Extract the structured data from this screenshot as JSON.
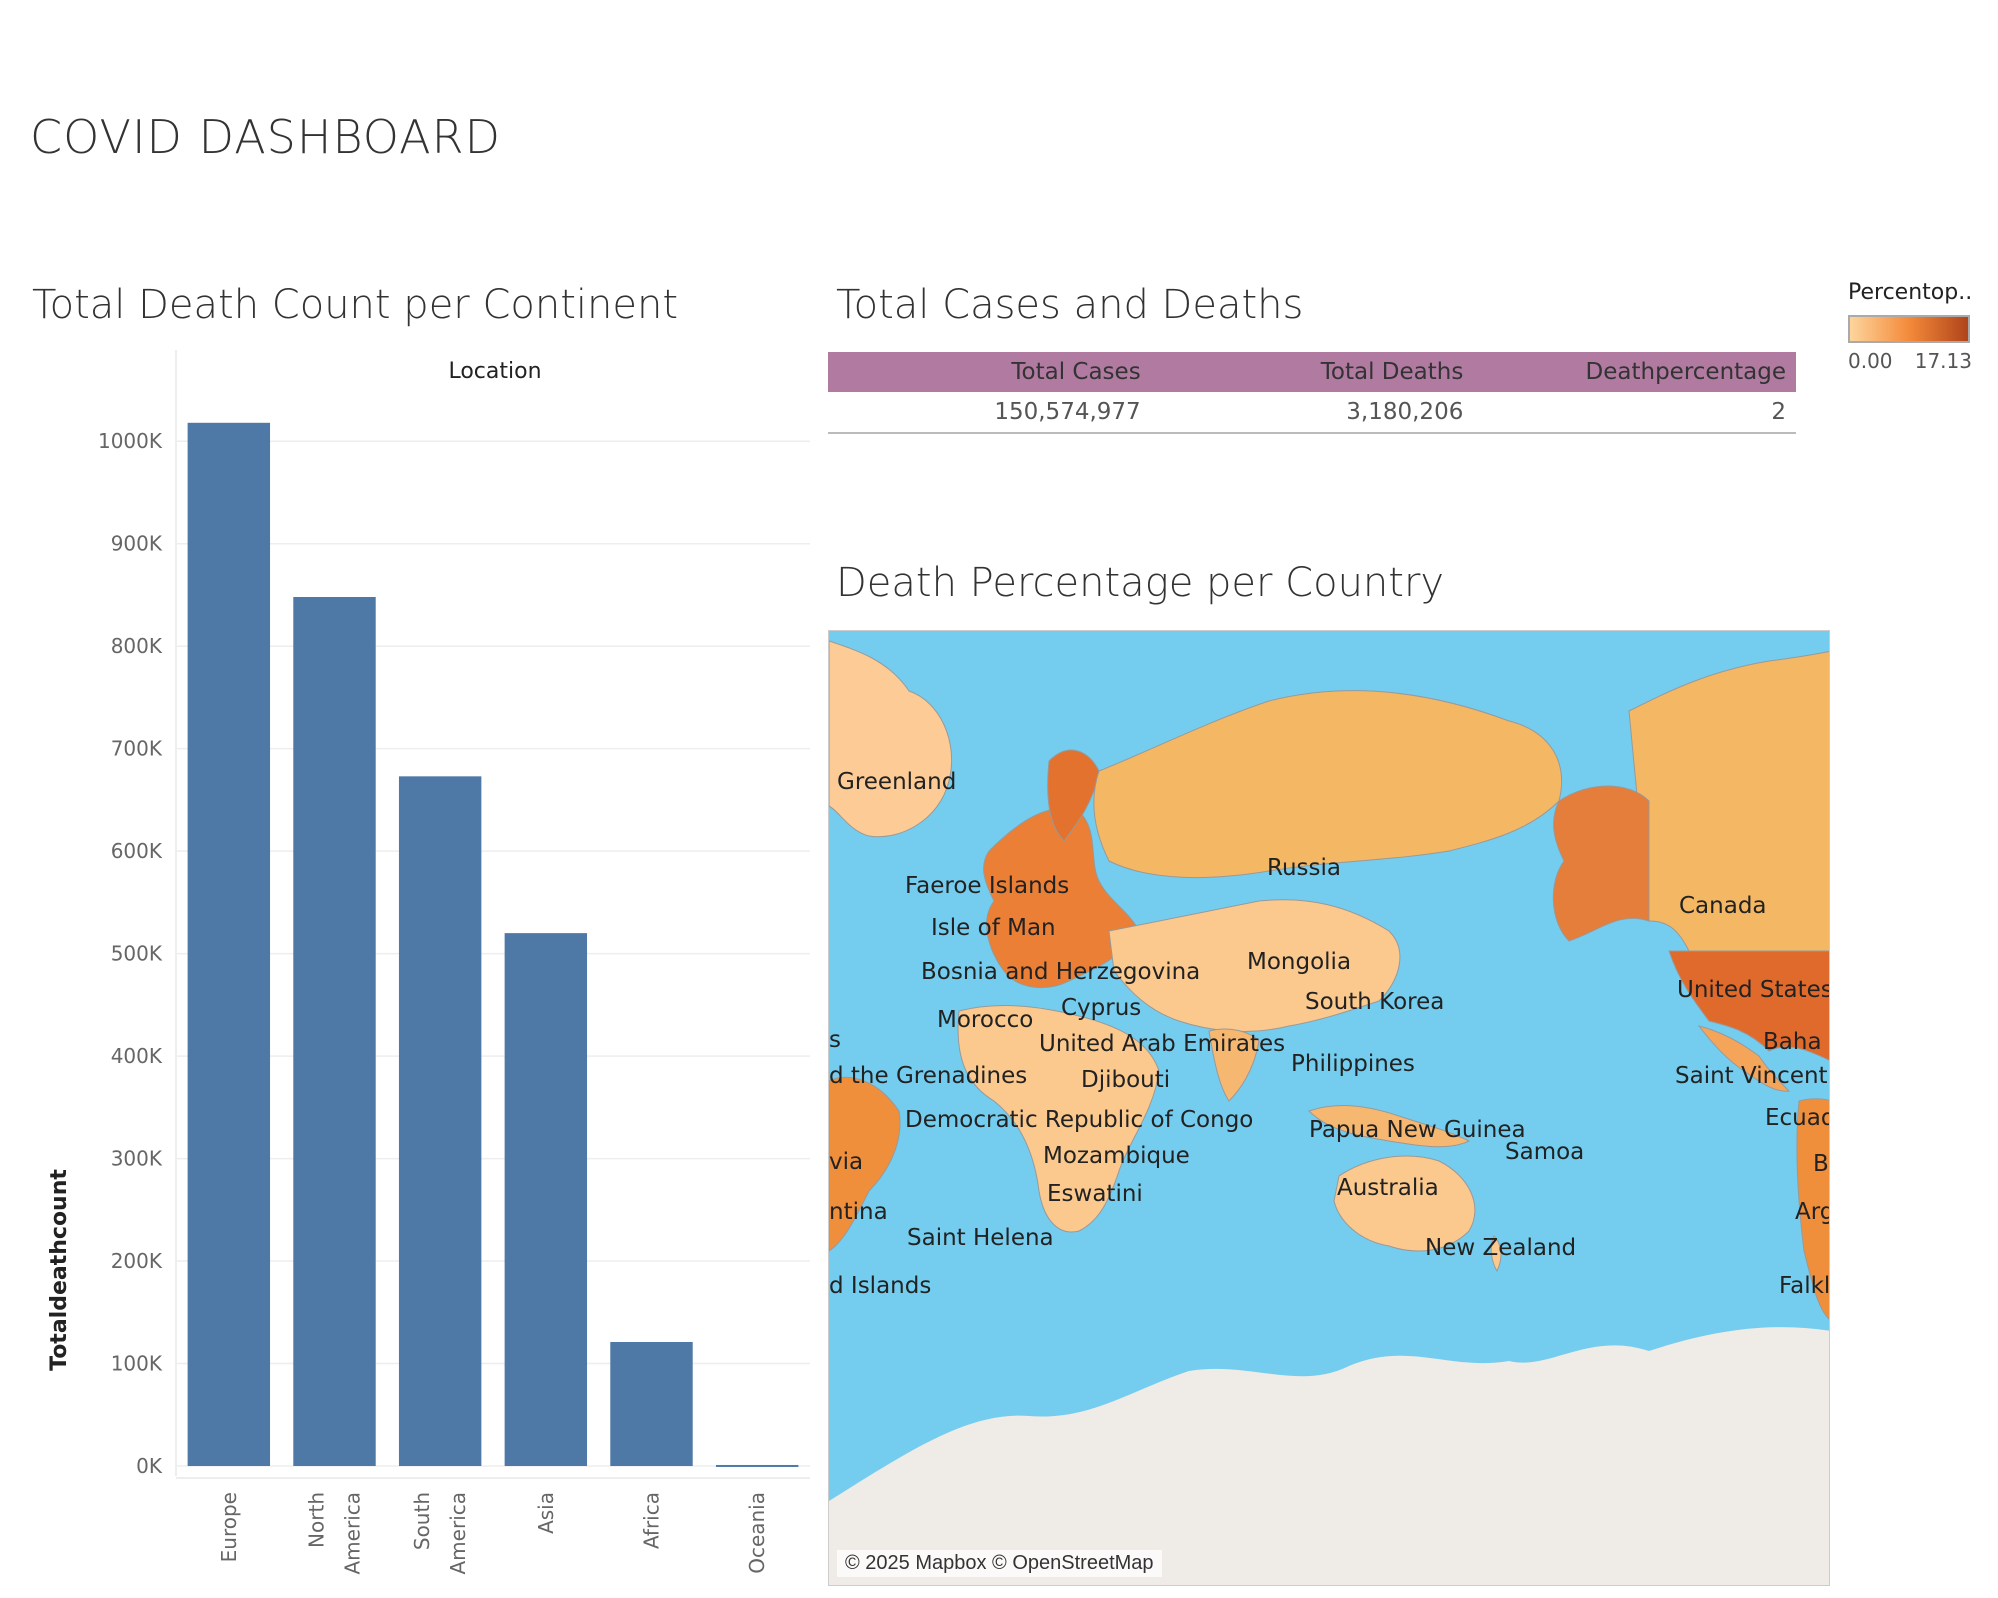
{
  "dashboard_title": "COVID DASHBOARD",
  "bar_section": {
    "title": "Total Death Count per Continent",
    "column_header": "Location",
    "y_axis_title": "Totaldeathcount"
  },
  "table_section": {
    "title": "Total Cases and Deaths",
    "headers": [
      "Total Cases",
      "Total Deaths",
      "Deathpercentage"
    ],
    "row": [
      "150,574,977",
      "3,180,206",
      "2"
    ],
    "header_color": "#b07aa1"
  },
  "legend": {
    "title": "Percentop..",
    "min": "0.00",
    "max": "17.13"
  },
  "map_section": {
    "title": "Death Percentage per Country",
    "credit": "© 2025 Mapbox © OpenStreetMap",
    "labels": [
      "Greenland",
      "Faeroe Islands",
      "Isle of Man",
      "Bosnia and Herzegovina",
      "Morocco",
      "Cyprus",
      "United Arab Emirates",
      "Djibouti",
      "Democratic Republic of Congo",
      "Mozambique",
      "Eswatini",
      "Saint Helena",
      "d Islands",
      "d the Grenadines",
      "s",
      "via",
      "ntina",
      "Russia",
      "Mongolia",
      "South Korea",
      "Philippines",
      "Papua New Guinea",
      "Australia",
      "New Zealand",
      "Samoa",
      "Canada",
      "United States",
      "Baha",
      "Saint Vincent",
      "Ecuad",
      "B",
      "Arg",
      "Falkl"
    ],
    "ocean_color": "#74cdef",
    "land_color": "#f4b764"
  },
  "chart_data": {
    "type": "bar",
    "categories": [
      "Europe",
      "North America",
      "South America",
      "Asia",
      "Africa",
      "Oceania"
    ],
    "category_lines": [
      [
        "Europe"
      ],
      [
        "North",
        "America"
      ],
      [
        "South",
        "America"
      ],
      [
        "Asia"
      ],
      [
        "Africa"
      ],
      [
        "Oceania"
      ]
    ],
    "values": [
      1018000,
      848000,
      673000,
      520000,
      121000,
      1000
    ],
    "xlabel": "Location",
    "ylabel": "Totaldeathcount",
    "ylim": [
      0,
      1050000
    ],
    "yticks": [
      0,
      100000,
      200000,
      300000,
      400000,
      500000,
      600000,
      700000,
      800000,
      900000,
      1000000
    ],
    "ytick_labels": [
      "0K",
      "100K",
      "200K",
      "300K",
      "400K",
      "500K",
      "600K",
      "700K",
      "800K",
      "900K",
      "1000K"
    ],
    "grid": true,
    "bar_color": "#4e79a7"
  }
}
